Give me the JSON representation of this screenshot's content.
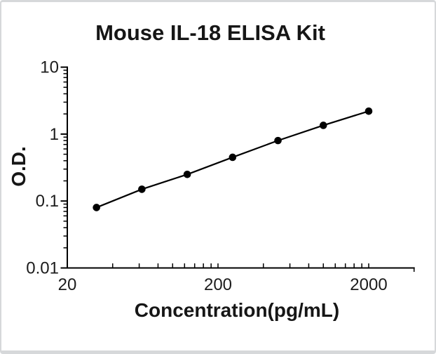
{
  "frame": {
    "background": "#ffffff",
    "border_color": "#d6d8da"
  },
  "chart_data": {
    "type": "line",
    "title": "Mouse IL-18 ELISA Kit",
    "xlabel": "Concentration(pg/mL)",
    "ylabel": "O.D.",
    "x_scale": "log",
    "y_scale": "log",
    "xlim": [
      20,
      4000
    ],
    "ylim": [
      0.01,
      10
    ],
    "x_tick_values": [
      20,
      200,
      2000
    ],
    "x_tick_labels": [
      "20",
      "200",
      "2000"
    ],
    "y_tick_values": [
      10,
      1,
      0.1,
      0.01
    ],
    "y_tick_labels": [
      "10",
      "1",
      "0.1",
      "0.01"
    ],
    "minor_ticks": "log-multiples-of-decade-base",
    "grid": false,
    "legend": false,
    "axis_color": "#000000",
    "series": [
      {
        "marker": "circle",
        "color": "#000000",
        "x": [
          31.25,
          62.5,
          125,
          250,
          500,
          1000,
          2000
        ],
        "y": [
          0.08,
          0.15,
          0.25,
          0.45,
          0.8,
          1.35,
          2.2
        ]
      }
    ]
  }
}
